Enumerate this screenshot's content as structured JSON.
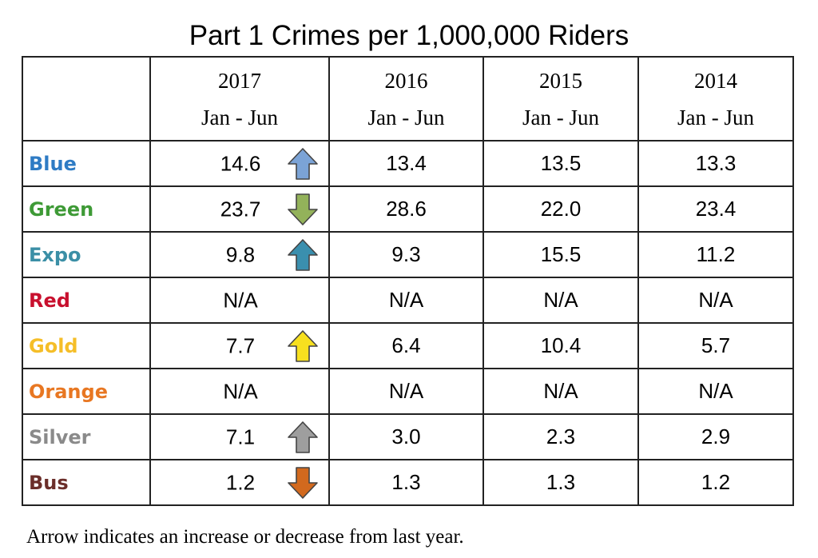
{
  "title": "Part 1 Crimes per 1,000,000 Riders",
  "chart_data": {
    "type": "table",
    "title": "Part 1 Crimes per 1,000,000 Riders",
    "columns": [
      {
        "year": "2017",
        "period": "Jan - Jun"
      },
      {
        "year": "2016",
        "period": "Jan - Jun"
      },
      {
        "year": "2015",
        "period": "Jan - Jun"
      },
      {
        "year": "2014",
        "period": "Jan - Jun"
      }
    ],
    "rows": [
      {
        "line": "Blue",
        "color": "#2E7BC4",
        "values": [
          "14.6",
          "13.4",
          "13.5",
          "13.3"
        ],
        "trend": "up",
        "arrow_color": "#7BA3D6"
      },
      {
        "line": "Green",
        "color": "#3E9A36",
        "values": [
          "23.7",
          "28.6",
          "22.0",
          "23.4"
        ],
        "trend": "down",
        "arrow_color": "#93B25A"
      },
      {
        "line": "Expo",
        "color": "#3B8FA6",
        "values": [
          "9.8",
          "9.3",
          "15.5",
          "11.2"
        ],
        "trend": "up",
        "arrow_color": "#3A8FAE"
      },
      {
        "line": "Red",
        "color": "#C8102E",
        "values": [
          "N/A",
          "N/A",
          "N/A",
          "N/A"
        ],
        "trend": "",
        "arrow_color": ""
      },
      {
        "line": "Gold",
        "color": "#F5BE28",
        "values": [
          "7.7",
          "6.4",
          "10.4",
          "5.7"
        ],
        "trend": "up",
        "arrow_color": "#F7E01F"
      },
      {
        "line": "Orange",
        "color": "#E87722",
        "values": [
          "N/A",
          "N/A",
          "N/A",
          "N/A"
        ],
        "trend": "",
        "arrow_color": ""
      },
      {
        "line": "Silver",
        "color": "#8A8A8A",
        "values": [
          "7.1",
          "3.0",
          "2.3",
          "2.9"
        ],
        "trend": "up",
        "arrow_color": "#9E9E9E"
      },
      {
        "line": "Bus",
        "color": "#6B2E2A",
        "values": [
          "1.2",
          "1.3",
          "1.3",
          "1.2"
        ],
        "trend": "down",
        "arrow_color": "#D2691E"
      }
    ]
  },
  "footnote": "Arrow indicates an increase or decrease from last year."
}
